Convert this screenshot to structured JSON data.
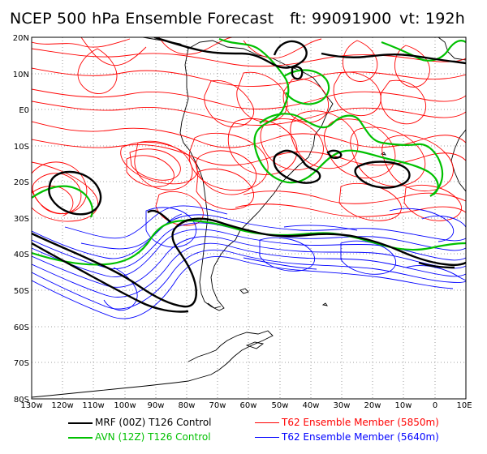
{
  "title": {
    "main": "NCEP 500 hPa Ensemble Forecast",
    "forecast_time": "ft: 99091900",
    "valid_time": "vt: 192h"
  },
  "axes": {
    "lat_labels": [
      "20N",
      "10N",
      "E0",
      "10S",
      "20S",
      "30S",
      "40S",
      "50S",
      "60S",
      "70S",
      "80S"
    ],
    "lon_labels": [
      "130w",
      "120w",
      "110w",
      "100w",
      "90w",
      "80w",
      "70w",
      "60w",
      "50w",
      "40w",
      "30w",
      "20w",
      "10w",
      "0",
      "10E"
    ]
  },
  "legend": [
    {
      "label": "MRF (00Z) T126 Control",
      "color": "#000000"
    },
    {
      "label": "AVN (12Z) T126 Control",
      "color": "#00c000"
    },
    {
      "label": "T62 Ensemble Member (5850m)",
      "color": "#ff0000"
    },
    {
      "label": "T62 Ensemble Member (5640m)",
      "color": "#0000ff"
    }
  ],
  "colors": {
    "frame": "#000000",
    "grid": "#808080",
    "red_contour": "#ff0000",
    "blue_contour": "#0000ff",
    "green_contour": "#00c000",
    "black_contour": "#000000",
    "coastline": "#000000"
  }
}
